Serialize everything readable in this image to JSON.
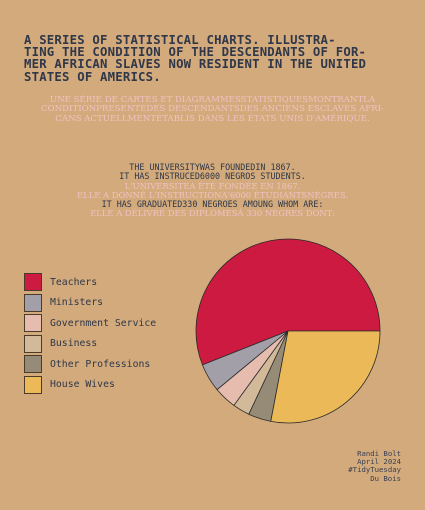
{
  "title": {
    "lines": [
      "A SERIES OF STATISTICAL CHARTS. ILLUSTRA-",
      "TING THE CONDITION OF THE DESCENDANTS OF FOR-",
      "MER AFRICAN SLAVES NOW RESIDENT IN THE UNITED",
      "STATES OF AMERICS."
    ]
  },
  "french_title": {
    "lines": [
      "UNE SÉRIE DE CARTES ET DIAGRAMMESSTATISTIQUESMONTRANTLA",
      "CONDITIONPRESENTEDES DESCENDANTSDES ANCIENS ESCLAVES AFRI-",
      "CANS ACTUELLMENTÉTABLIS DANS LES ÉTATS UNIS D'AMÉRIQUE."
    ]
  },
  "info": {
    "lines": [
      {
        "text": "THE UNIVERSITYWAS FOUNDEDIN 1867.",
        "lang": "en"
      },
      {
        "text": "IT HAS INSTRUCED6000 NEGROS STUDENTS.",
        "lang": "en"
      },
      {
        "text": "L'UNIVERSITEA ÉTÉ FONDÉE EN 1867.",
        "lang": "fr"
      },
      {
        "text": "ELLE A DONNÉ L'INSTRUCTIONA'6000 ÉTUDIANTSNÈGRES.",
        "lang": "fr"
      },
      {
        "text": "IT HAS GRADUATED330 NEGROES AMOUNG WHOM ARE:",
        "lang": "en"
      },
      {
        "text": "ELLE A DÉLIVRÉ DES DIPLOMESÁ 330 NÈGRES DONT:",
        "lang": "fr"
      }
    ]
  },
  "credits": {
    "lines": [
      "Randi Bolt",
      "April 2024",
      "#TidyTuesday",
      "Du Bois"
    ]
  },
  "chart_data": {
    "type": "pie",
    "start": "3 o'clock, counterclockwise",
    "legend_position": "left",
    "series": [
      {
        "name": "Teachers",
        "value": 56,
        "color": "#cd1a40"
      },
      {
        "name": "Ministers",
        "value": 5,
        "color": "#a39fa8"
      },
      {
        "name": "Government Service",
        "value": 4,
        "color": "#e6bcaf"
      },
      {
        "name": "Business",
        "value": 3,
        "color": "#d2b99a"
      },
      {
        "name": "Other Professions",
        "value": 4,
        "color": "#958b76"
      },
      {
        "name": "House Wives",
        "value": 28,
        "color": "#ebb957"
      }
    ]
  }
}
